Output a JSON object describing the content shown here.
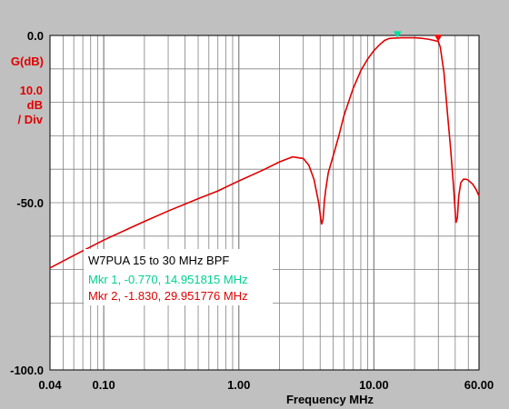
{
  "chart_data": {
    "type": "line",
    "title": "W7PUA 15 to 30 MHz BPF",
    "xlabel": "Frequency MHz",
    "ylabel": "G(dB)",
    "y_scale_line1": "10.0",
    "y_scale_line2": "dB",
    "y_scale_line3": "/ Div",
    "x_scale": "log",
    "xlim": [
      0.04,
      60
    ],
    "ylim": [
      -100,
      0
    ],
    "grid": true,
    "x_ticks": [
      {
        "value": 0.04,
        "label": "0.04"
      },
      {
        "value": 0.1,
        "label": "0.10"
      },
      {
        "value": 1,
        "label": "1.00"
      },
      {
        "value": 10,
        "label": "10.00"
      },
      {
        "value": 60,
        "label": "60.00"
      }
    ],
    "y_ticks": [
      {
        "value": 0,
        "label": "0.0"
      },
      {
        "value": -50,
        "label": "-50.0"
      },
      {
        "value": -100,
        "label": "-100.0"
      }
    ],
    "markers": [
      {
        "label": "Mkr 1, -0.770, 14.951815 MHz",
        "x": 14.951815,
        "y": -0.77,
        "color": "#00e0a0"
      },
      {
        "label": "Mkr 2, -1.830, 29.951776 MHz",
        "x": 29.951776,
        "y": -1.83,
        "color": "#ff0000"
      }
    ],
    "series": [
      {
        "color": "#e00000",
        "x": [
          0.04,
          0.06,
          0.08,
          0.1,
          0.15,
          0.2,
          0.3,
          0.5,
          0.7,
          1.0,
          1.5,
          2.0,
          2.5,
          3.0,
          3.3,
          3.6,
          3.9,
          4.1,
          4.2,
          4.3,
          4.4,
          4.6,
          5.0,
          5.5,
          6.0,
          7.0,
          8.0,
          9.0,
          10.0,
          11.0,
          12.0,
          13.0,
          14.0,
          14.95,
          16.0,
          18.0,
          20.0,
          22.0,
          25.0,
          28.0,
          29.95,
          31.0,
          33.0,
          35.0,
          37.0,
          39.0,
          40.5,
          41.5,
          42.5,
          44.0,
          46.0,
          48.0,
          50.0,
          54.0,
          57.0,
          60.0
        ],
        "y": [
          -69.5,
          -65.8,
          -63.2,
          -61.2,
          -57.9,
          -55.6,
          -52.5,
          -48.8,
          -46.5,
          -43.5,
          -40.3,
          -37.8,
          -36.3,
          -36.8,
          -38.8,
          -43.0,
          -50.0,
          -56.5,
          -55.0,
          -49.5,
          -46.0,
          -41.0,
          -36.0,
          -30.0,
          -24.0,
          -16.0,
          -10.5,
          -7.0,
          -4.5,
          -2.8,
          -1.5,
          -0.9,
          -0.8,
          -0.77,
          -0.7,
          -0.7,
          -0.7,
          -0.8,
          -1.1,
          -1.5,
          -1.83,
          -3.5,
          -11.0,
          -23.0,
          -34.0,
          -46.0,
          -56.0,
          -54.5,
          -48.0,
          -44.0,
          -43.0,
          -43.0,
          -43.3,
          -44.5,
          -46.0,
          -48.0
        ]
      }
    ]
  }
}
